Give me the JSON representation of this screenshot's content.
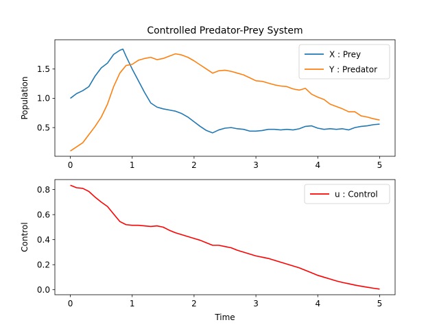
{
  "chart_data": [
    {
      "type": "line",
      "title": "Controlled Predator-Prey System",
      "xlabel": "",
      "ylabel": "Population",
      "xlim": [
        -0.25,
        5.25
      ],
      "ylim": [
        0.01,
        2.0
      ],
      "xticks": [
        0,
        1,
        2,
        3,
        4,
        5
      ],
      "yticks": [
        0.5,
        1.0,
        1.5
      ],
      "xtick_labels": [
        "0",
        "1",
        "2",
        "3",
        "4",
        "5"
      ],
      "ytick_labels": [
        "0.5",
        "1.0",
        "1.5"
      ],
      "grid": false,
      "legend": "upper right",
      "series": [
        {
          "name": "X : Prey",
          "color": "#1f77b4",
          "x": [
            0,
            0.1,
            0.2,
            0.3,
            0.4,
            0.5,
            0.6,
            0.7,
            0.8,
            0.85,
            0.9,
            1.0,
            1.1,
            1.2,
            1.3,
            1.4,
            1.5,
            1.6,
            1.7,
            1.8,
            1.9,
            2.0,
            2.1,
            2.2,
            2.3,
            2.4,
            2.5,
            2.6,
            2.7,
            2.8,
            2.9,
            3.0,
            3.1,
            3.2,
            3.3,
            3.4,
            3.5,
            3.6,
            3.7,
            3.8,
            3.9,
            4.0,
            4.1,
            4.2,
            4.3,
            4.4,
            4.5,
            4.6,
            4.7,
            4.8,
            4.9,
            5.0
          ],
          "y": [
            1.0,
            1.08,
            1.13,
            1.2,
            1.38,
            1.52,
            1.6,
            1.75,
            1.82,
            1.84,
            1.72,
            1.5,
            1.3,
            1.1,
            0.92,
            0.85,
            0.82,
            0.8,
            0.78,
            0.74,
            0.68,
            0.6,
            0.52,
            0.45,
            0.41,
            0.46,
            0.49,
            0.5,
            0.48,
            0.47,
            0.44,
            0.44,
            0.45,
            0.47,
            0.47,
            0.46,
            0.47,
            0.46,
            0.48,
            0.52,
            0.53,
            0.49,
            0.47,
            0.48,
            0.47,
            0.48,
            0.46,
            0.5,
            0.52,
            0.53,
            0.55,
            0.56
          ]
        },
        {
          "name": "Y : Predator",
          "color": "#ff7f0e",
          "x": [
            0,
            0.1,
            0.2,
            0.3,
            0.4,
            0.5,
            0.6,
            0.7,
            0.8,
            0.9,
            1.0,
            1.1,
            1.2,
            1.3,
            1.4,
            1.5,
            1.6,
            1.7,
            1.8,
            1.9,
            2.0,
            2.1,
            2.2,
            2.3,
            2.4,
            2.5,
            2.6,
            2.7,
            2.8,
            2.9,
            3.0,
            3.1,
            3.2,
            3.3,
            3.4,
            3.5,
            3.6,
            3.7,
            3.8,
            3.9,
            4.0,
            4.1,
            4.2,
            4.3,
            4.4,
            4.5,
            4.6,
            4.7,
            4.8,
            4.9,
            5.0
          ],
          "y": [
            0.1,
            0.17,
            0.24,
            0.38,
            0.52,
            0.68,
            0.9,
            1.2,
            1.43,
            1.56,
            1.58,
            1.65,
            1.68,
            1.7,
            1.66,
            1.68,
            1.72,
            1.76,
            1.74,
            1.7,
            1.64,
            1.57,
            1.5,
            1.43,
            1.47,
            1.48,
            1.46,
            1.43,
            1.4,
            1.35,
            1.3,
            1.29,
            1.26,
            1.23,
            1.21,
            1.2,
            1.16,
            1.14,
            1.17,
            1.07,
            1.02,
            0.98,
            0.9,
            0.86,
            0.82,
            0.77,
            0.77,
            0.7,
            0.68,
            0.65,
            0.63
          ]
        }
      ]
    },
    {
      "type": "line",
      "title": "",
      "xlabel": "Time",
      "ylabel": "Control",
      "xlim": [
        -0.25,
        5.25
      ],
      "ylim": [
        -0.04,
        0.88
      ],
      "xticks": [
        0,
        1,
        2,
        3,
        4,
        5
      ],
      "yticks": [
        0.0,
        0.2,
        0.4,
        0.6,
        0.8
      ],
      "xtick_labels": [
        "0",
        "1",
        "2",
        "3",
        "4",
        "5"
      ],
      "ytick_labels": [
        "0.0",
        "0.2",
        "0.4",
        "0.6",
        "0.8"
      ],
      "grid": false,
      "legend": "upper right",
      "series": [
        {
          "name": "u : Control",
          "color": "#ff0000",
          "x": [
            0,
            0.1,
            0.2,
            0.3,
            0.4,
            0.5,
            0.6,
            0.7,
            0.8,
            0.9,
            1.0,
            1.1,
            1.2,
            1.3,
            1.4,
            1.5,
            1.6,
            1.7,
            1.8,
            1.9,
            2.0,
            2.1,
            2.2,
            2.3,
            2.4,
            2.5,
            2.6,
            2.7,
            2.8,
            2.9,
            3.0,
            3.1,
            3.2,
            3.3,
            3.4,
            3.5,
            3.6,
            3.7,
            3.8,
            3.9,
            4.0,
            4.1,
            4.2,
            4.3,
            4.4,
            4.5,
            4.6,
            4.7,
            4.8,
            4.9,
            5.0
          ],
          "y": [
            0.835,
            0.815,
            0.81,
            0.785,
            0.74,
            0.7,
            0.665,
            0.605,
            0.545,
            0.52,
            0.515,
            0.515,
            0.51,
            0.505,
            0.51,
            0.5,
            0.475,
            0.455,
            0.44,
            0.425,
            0.41,
            0.395,
            0.375,
            0.355,
            0.355,
            0.345,
            0.335,
            0.315,
            0.3,
            0.285,
            0.27,
            0.26,
            0.25,
            0.235,
            0.22,
            0.205,
            0.19,
            0.175,
            0.155,
            0.135,
            0.115,
            0.1,
            0.085,
            0.07,
            0.058,
            0.048,
            0.037,
            0.028,
            0.02,
            0.012,
            0.005
          ]
        }
      ]
    }
  ]
}
